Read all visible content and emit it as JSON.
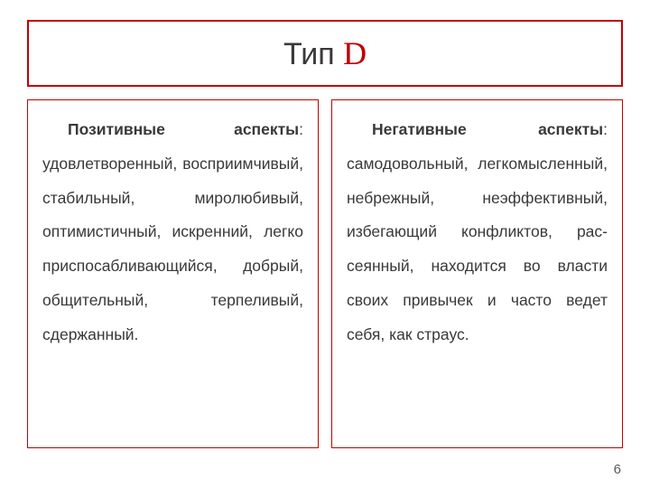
{
  "title": {
    "prefix": "Тип ",
    "letter": "D",
    "prefix_color": "#3b3838",
    "letter_color": "#c00000",
    "fontsize": 34,
    "letter_font": "Comic Sans MS"
  },
  "columns": {
    "left": {
      "label": "Позитивные аспекты",
      "body": ": удовлетворенный, воспри­имчивый, стабильный, миро­любивый, оптимистичный, искренний, легко приспосаб­ливающийся, добрый, общительный, терпеливый, сдержанный."
    },
    "right": {
      "label": "Негативные аспекты",
      "body": ": самодовольный, легко­мысленный, небрежный, неэффективный, избегаю­щий конфликтов, рас­сеянный, находится во власти своих привычек и часто ведет себя, как страус."
    }
  },
  "style": {
    "border_color": "#c00000",
    "text_color": "#3b3838",
    "background_color": "#ffffff",
    "body_fontsize": 17.5,
    "line_height": 2.16,
    "column_height": 386
  },
  "page_number": "6"
}
